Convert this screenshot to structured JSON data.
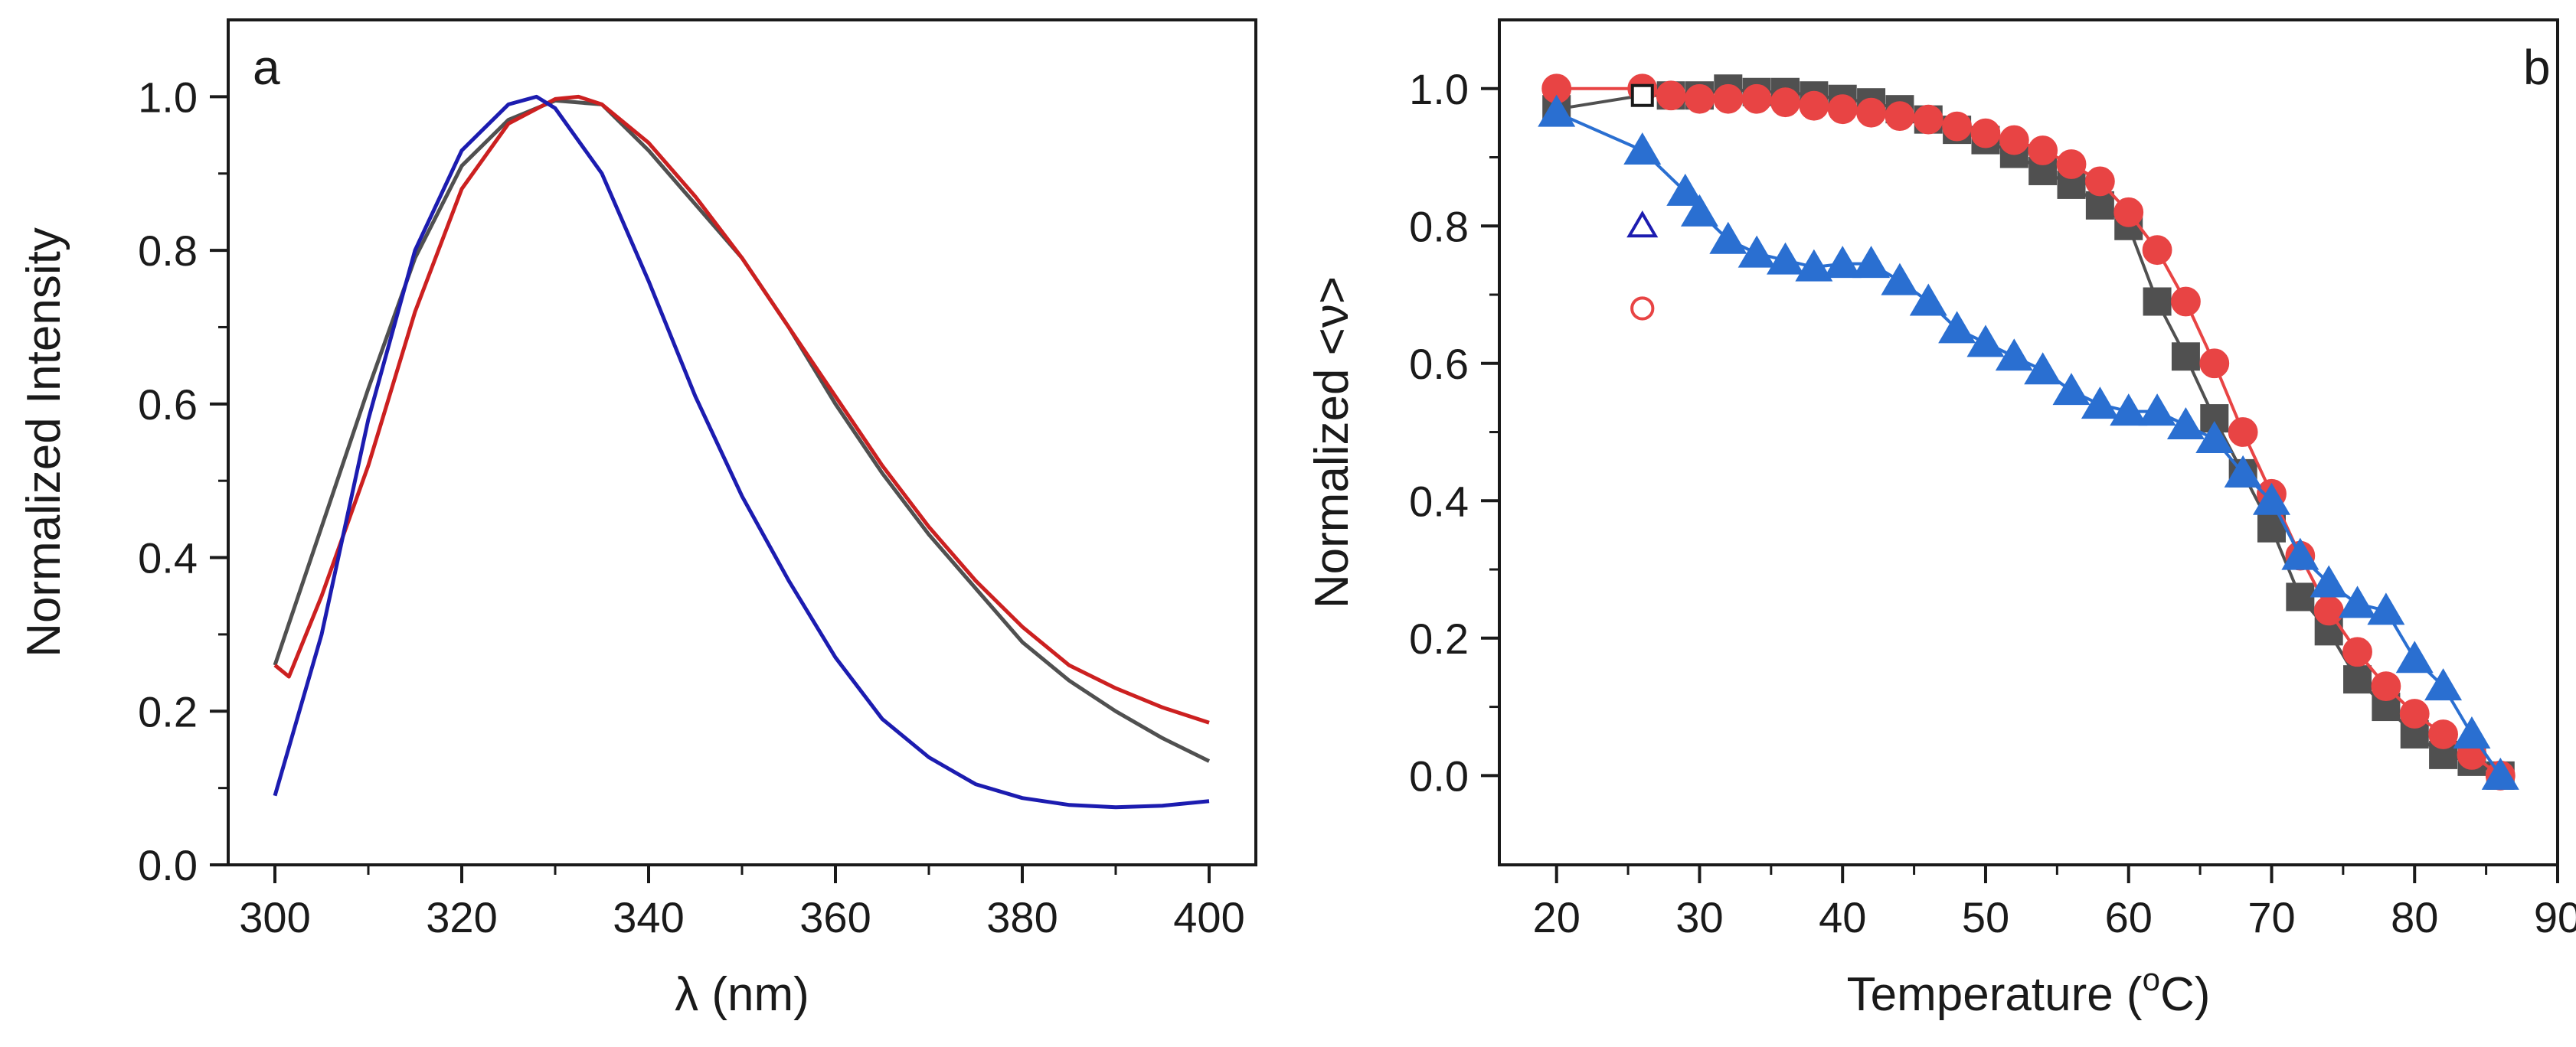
{
  "chart_data": [
    {
      "panel": "a",
      "type": "line",
      "title": "",
      "xlabel": "λ (nm)",
      "ylabel": "Normalized Intensity",
      "xlim": [
        295,
        405
      ],
      "ylim": [
        0.0,
        1.1
      ],
      "xticks": [
        300,
        320,
        340,
        360,
        380,
        400
      ],
      "yticks": [
        0.0,
        0.2,
        0.4,
        0.6,
        0.8,
        1.0
      ],
      "xtick_labels": [
        "300",
        "320",
        "340",
        "360",
        "380",
        "400"
      ],
      "ytick_labels": [
        "0.0",
        "0.2",
        "0.4",
        "0.6",
        "0.8",
        "1.0"
      ],
      "legend": "none",
      "grid": false,
      "series": [
        {
          "color": "#505050",
          "x": [
            300,
            305,
            310,
            315,
            320,
            325,
            330,
            335,
            340,
            345,
            350,
            355,
            360,
            365,
            370,
            375,
            380,
            385,
            390,
            395,
            400
          ],
          "y": [
            0.26,
            0.44,
            0.62,
            0.79,
            0.91,
            0.97,
            0.995,
            0.99,
            0.93,
            0.86,
            0.79,
            0.7,
            0.6,
            0.51,
            0.43,
            0.36,
            0.29,
            0.24,
            0.2,
            0.165,
            0.135
          ]
        },
        {
          "color": "#cc2020",
          "x": [
            300,
            301.5,
            305,
            310,
            315,
            320,
            325,
            330,
            332.5,
            335,
            340,
            345,
            350,
            355,
            360,
            365,
            370,
            375,
            380,
            385,
            390,
            395,
            400
          ],
          "y": [
            0.26,
            0.245,
            0.35,
            0.52,
            0.72,
            0.88,
            0.965,
            0.997,
            1.0,
            0.99,
            0.94,
            0.87,
            0.79,
            0.7,
            0.61,
            0.52,
            0.44,
            0.37,
            0.31,
            0.26,
            0.23,
            0.205,
            0.185
          ]
        },
        {
          "color": "#1c1cb0",
          "x": [
            300,
            305,
            310,
            315,
            320,
            325,
            328,
            330,
            335,
            340,
            345,
            350,
            355,
            360,
            365,
            370,
            375,
            380,
            385,
            390,
            395,
            400
          ],
          "y": [
            0.09,
            0.3,
            0.58,
            0.8,
            0.93,
            0.99,
            1.0,
            0.985,
            0.9,
            0.76,
            0.61,
            0.48,
            0.37,
            0.27,
            0.19,
            0.14,
            0.105,
            0.087,
            0.078,
            0.075,
            0.077,
            0.083
          ]
        }
      ],
      "annotations": [
        {
          "text": "a"
        }
      ]
    },
    {
      "panel": "b",
      "type": "scatter",
      "title": "",
      "xlabel": "Temperature (oC)",
      "xlabel_parts": {
        "pre": "Temperature (",
        "sup": "o",
        "post": "C)"
      },
      "ylabel": "Normalized <ν>",
      "xlim": [
        16,
        90
      ],
      "ylim": [
        -0.13,
        1.1
      ],
      "xticks": [
        20,
        30,
        40,
        50,
        60,
        70,
        80,
        90
      ],
      "yticks": [
        0.0,
        0.2,
        0.4,
        0.6,
        0.8,
        1.0
      ],
      "xtick_labels": [
        "20",
        "30",
        "40",
        "50",
        "60",
        "70",
        "80",
        "90"
      ],
      "ytick_labels": [
        "0.0",
        "0.2",
        "0.4",
        "0.6",
        "0.8",
        "1.0"
      ],
      "legend": "none",
      "grid": false,
      "series": [
        {
          "color": "#505050",
          "marker": "square",
          "x": [
            20,
            26,
            28,
            30,
            32,
            34,
            36,
            38,
            40,
            42,
            44,
            46,
            48,
            50,
            52,
            54,
            56,
            58,
            60,
            62,
            64,
            66,
            68,
            70,
            72,
            74,
            76,
            78,
            80,
            82,
            84,
            86
          ],
          "y": [
            0.97,
            0.99,
            0.99,
            0.99,
            1.0,
            0.995,
            0.995,
            0.99,
            0.985,
            0.98,
            0.97,
            0.955,
            0.94,
            0.925,
            0.905,
            0.88,
            0.86,
            0.83,
            0.8,
            0.69,
            0.61,
            0.52,
            0.44,
            0.36,
            0.26,
            0.21,
            0.14,
            0.1,
            0.06,
            0.03,
            0.02,
            0.0
          ]
        },
        {
          "color": "#e84444",
          "marker": "circle",
          "x": [
            20,
            26,
            28,
            30,
            32,
            34,
            36,
            38,
            40,
            42,
            44,
            46,
            48,
            50,
            52,
            54,
            56,
            58,
            60,
            62,
            64,
            66,
            68,
            70,
            72,
            74,
            76,
            78,
            80,
            82,
            84,
            86
          ],
          "y": [
            1.0,
            1.0,
            0.99,
            0.985,
            0.985,
            0.985,
            0.98,
            0.975,
            0.97,
            0.965,
            0.96,
            0.955,
            0.945,
            0.935,
            0.925,
            0.91,
            0.89,
            0.865,
            0.82,
            0.765,
            0.69,
            0.6,
            0.5,
            0.41,
            0.32,
            0.24,
            0.18,
            0.13,
            0.09,
            0.06,
            0.03,
            0.0
          ]
        },
        {
          "color": "#2a6fd1",
          "marker": "triangle",
          "x": [
            20,
            26,
            29,
            30,
            32,
            34,
            36,
            38,
            40,
            42,
            44,
            46,
            48,
            50,
            52,
            54,
            56,
            58,
            60,
            62,
            64,
            66,
            68,
            70,
            72,
            74,
            76,
            78,
            80,
            82,
            84,
            86
          ],
          "y": [
            0.965,
            0.91,
            0.85,
            0.82,
            0.78,
            0.76,
            0.75,
            0.74,
            0.745,
            0.745,
            0.72,
            0.69,
            0.65,
            0.63,
            0.61,
            0.59,
            0.56,
            0.54,
            0.53,
            0.53,
            0.51,
            0.49,
            0.44,
            0.4,
            0.32,
            0.28,
            0.25,
            0.24,
            0.17,
            0.13,
            0.06,
            0.0
          ]
        }
      ],
      "open_markers": [
        {
          "marker": "square",
          "color": "#1a1a1a",
          "x": 26,
          "y": 0.99
        },
        {
          "marker": "triangle",
          "color": "#1c1cb0",
          "x": 26,
          "y": 0.8
        },
        {
          "marker": "circle",
          "color": "#e84444",
          "x": 26,
          "y": 0.68
        }
      ],
      "annotations": [
        {
          "text": "b"
        }
      ]
    }
  ]
}
